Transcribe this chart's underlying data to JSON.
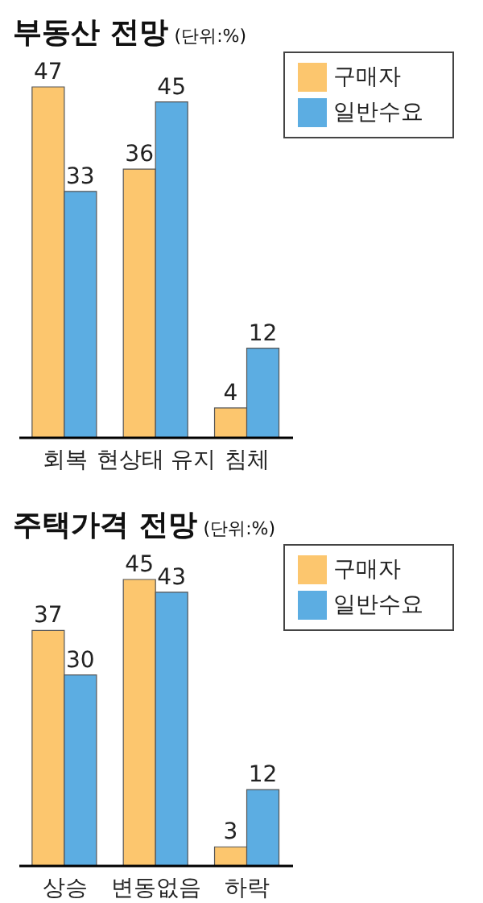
{
  "chart_data": [
    {
      "type": "bar",
      "title": "부동산 전망",
      "subtitle": "(단위:%)",
      "categories": [
        "회복",
        "현상태 유지",
        "침체"
      ],
      "series": [
        {
          "name": "구매자",
          "color": "#fcc66e",
          "values": [
            47,
            36,
            4
          ]
        },
        {
          "name": "일반수요",
          "color": "#5cade2",
          "values": [
            33,
            45,
            12
          ]
        }
      ],
      "data_labels": true,
      "legend": "top right",
      "grid": false
    },
    {
      "type": "bar",
      "title": "주택가격 전망",
      "subtitle": "(단위:%)",
      "categories": [
        "상승",
        "변동없음",
        "하락"
      ],
      "series": [
        {
          "name": "구매자",
          "color": "#fcc66e",
          "values": [
            37,
            45,
            3
          ]
        },
        {
          "name": "일반수요",
          "color": "#5cade2",
          "values": [
            30,
            43,
            12
          ]
        }
      ],
      "data_labels": true,
      "legend": "top right",
      "grid": false
    }
  ]
}
